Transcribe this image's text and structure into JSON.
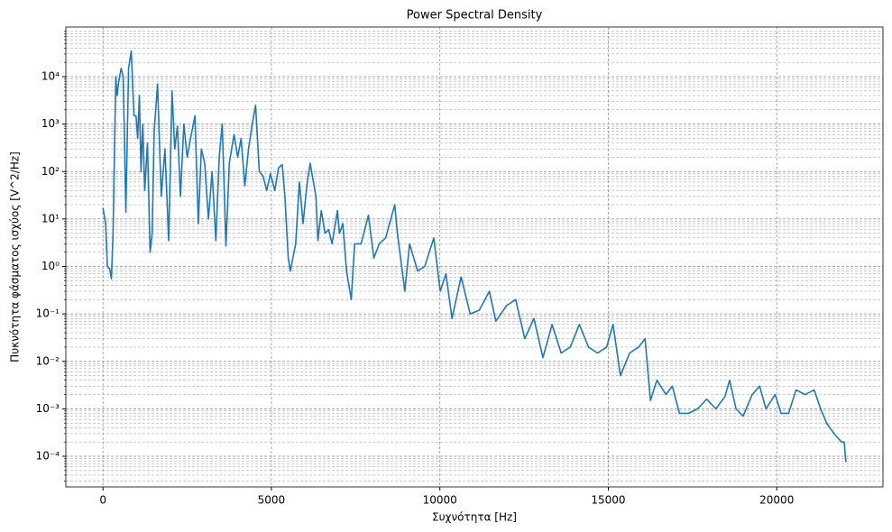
{
  "chart_data": {
    "type": "line",
    "title": "Power Spectral Density",
    "xlabel": "Συχνότητα [Hz]",
    "ylabel": "Πυκνότητα φάσματος ισχύος [V^2/Hz]",
    "x": [
      0,
      80,
      130,
      200,
      250,
      300,
      380,
      420,
      470,
      540,
      600,
      680,
      760,
      840,
      920,
      980,
      1030,
      1080,
      1130,
      1180,
      1240,
      1320,
      1400,
      1460,
      1520,
      1620,
      1730,
      1840,
      1950,
      2050,
      2130,
      2210,
      2300,
      2400,
      2500,
      2600,
      2730,
      2830,
      2920,
      3020,
      3130,
      3240,
      3350,
      3450,
      3540,
      3650,
      3750,
      3890,
      4000,
      4100,
      4210,
      4320,
      4430,
      4530,
      4640,
      4750,
      4860,
      4970,
      5100,
      5210,
      5320,
      5400,
      5500,
      5560,
      5720,
      5830,
      5940,
      6050,
      6150,
      6320,
      6380,
      6480,
      6590,
      6700,
      6800,
      6960,
      7020,
      7120,
      7230,
      7370,
      7470,
      7660,
      7880,
      8040,
      8200,
      8390,
      8660,
      8740,
      8960,
      9100,
      9340,
      9550,
      9820,
      10010,
      10180,
      10360,
      10630,
      10900,
      11170,
      11470,
      11660,
      11980,
      12250,
      12520,
      12790,
      13060,
      13330,
      13600,
      13870,
      14140,
      14410,
      14680,
      14950,
      15140,
      15360,
      15630,
      15900,
      16090,
      16250,
      16440,
      16710,
      16900,
      17110,
      17380,
      17650,
      17920,
      18190,
      18460,
      18600,
      18790,
      19000,
      19270,
      19490,
      19680,
      19950,
      20130,
      20350,
      20570,
      20840,
      21110,
      21300,
      21480,
      21700,
      21920,
      22000,
      22050
    ],
    "values": [
      17,
      8,
      1,
      0.9,
      0.55,
      5,
      10000,
      4000,
      8000,
      15000,
      10000,
      14,
      15000,
      35000,
      1500,
      1500,
      500,
      4000,
      100,
      1000,
      40,
      400,
      2,
      5,
      700,
      7000,
      30,
      300,
      3.5,
      5000,
      300,
      900,
      30,
      1000,
      200,
      500,
      1500,
      8,
      300,
      150,
      10,
      100,
      3.5,
      200,
      1000,
      2.7,
      150,
      600,
      200,
      500,
      50,
      300,
      1000,
      2500,
      100,
      80,
      40,
      90,
      40,
      120,
      140,
      30,
      1.5,
      0.8,
      3,
      60,
      8,
      50,
      150,
      30,
      3.5,
      15,
      5,
      6,
      3,
      15,
      5,
      8,
      0.8,
      0.2,
      3,
      3,
      12,
      1.5,
      3,
      4,
      20,
      5,
      0.3,
      3,
      0.8,
      1,
      4,
      0.3,
      0.7,
      0.08,
      0.6,
      0.1,
      0.12,
      0.3,
      0.07,
      0.15,
      0.2,
      0.03,
      0.08,
      0.012,
      0.06,
      0.015,
      0.02,
      0.06,
      0.02,
      0.015,
      0.02,
      0.06,
      0.005,
      0.015,
      0.02,
      0.03,
      0.0015,
      0.004,
      0.002,
      0.003,
      0.0008,
      0.0008,
      0.001,
      0.0016,
      0.001,
      0.0018,
      0.004,
      0.001,
      0.0007,
      0.002,
      0.003,
      0.001,
      0.002,
      0.0008,
      0.0008,
      0.0025,
      0.002,
      0.0025,
      0.001,
      0.0005,
      0.0003,
      0.0002,
      0.0002,
      7.5e-05
    ],
    "color": "#1f77b4",
    "xlim": [
      -1102,
      23152
    ],
    "xticks": [
      0,
      5000,
      10000,
      15000,
      20000
    ],
    "ylim": [
      2.26e-05,
      111000
    ],
    "log_y": true,
    "yticks": [
      {
        "value": 0.0001,
        "label": "10⁻⁴"
      },
      {
        "value": 0.001,
        "label": "10⁻³"
      },
      {
        "value": 0.01,
        "label": "10⁻²"
      },
      {
        "value": 0.1,
        "label": "10⁻¹"
      },
      {
        "value": 1,
        "label": "10⁰"
      },
      {
        "value": 10,
        "label": "10¹"
      },
      {
        "value": 100,
        "label": "10²"
      },
      {
        "value": 1000,
        "label": "10³"
      },
      {
        "value": 10000,
        "label": "10⁴"
      }
    ],
    "yminorticks": [
      3e-05,
      4e-05,
      5e-05,
      6e-05,
      7e-05,
      8e-05,
      9e-05,
      0.0002,
      0.0003,
      0.0004,
      0.0005,
      0.0006,
      0.0007,
      0.0008,
      0.0009,
      0.002,
      0.003,
      0.004,
      0.005,
      0.006,
      0.007,
      0.008,
      0.009,
      0.02,
      0.03,
      0.04,
      0.05,
      0.06,
      0.07,
      0.08,
      0.09,
      0.2,
      0.3,
      0.4,
      0.5,
      0.6,
      0.7,
      0.8,
      0.9,
      2,
      3,
      4,
      5,
      6,
      7,
      8,
      9,
      20,
      30,
      40,
      50,
      60,
      70,
      80,
      90,
      200,
      300,
      400,
      500,
      600,
      700,
      800,
      900,
      2000,
      3000,
      4000,
      5000,
      6000,
      7000,
      8000,
      9000,
      20000,
      30000,
      40000,
      50000,
      60000,
      70000,
      80000,
      90000
    ],
    "grid": true
  }
}
